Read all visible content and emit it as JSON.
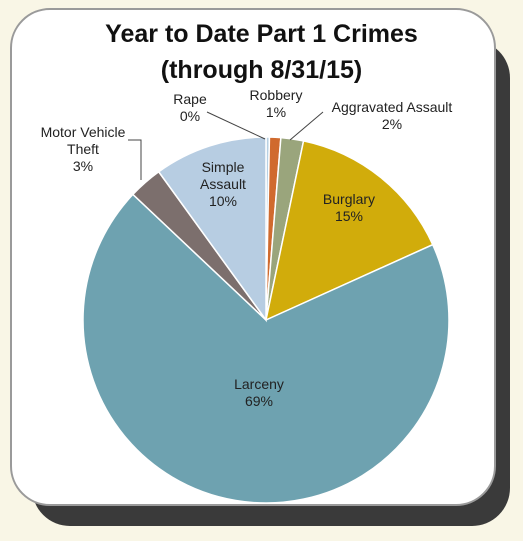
{
  "chart_data": {
    "type": "pie",
    "title_lines": [
      "Year to Date Part 1 Crimes",
      "(through 8/31/15)"
    ],
    "slices": [
      {
        "name": "Rape",
        "value": 0.3,
        "label_pct": "0%",
        "color": "#b7d0e3"
      },
      {
        "name": "Robbery",
        "value": 1.0,
        "label_pct": "1%",
        "color": "#d06a2e"
      },
      {
        "name": "Aggravated Assault",
        "value": 2.0,
        "label_pct": "2%",
        "color": "#9aa57c"
      },
      {
        "name": "Burglary",
        "value": 15.0,
        "label_pct": "15%",
        "color": "#d1ac0b"
      },
      {
        "name": "Larceny",
        "value": 69.0,
        "label_pct": "69%",
        "color": "#6ea2b0"
      },
      {
        "name": "Motor Vehicle Theft",
        "value": 3.0,
        "label_pct": "3%",
        "color": "#7c6f6d"
      },
      {
        "name": "Simple Assault",
        "value": 10.0,
        "label_pct": "10%",
        "color": "#b7cde2"
      }
    ]
  }
}
